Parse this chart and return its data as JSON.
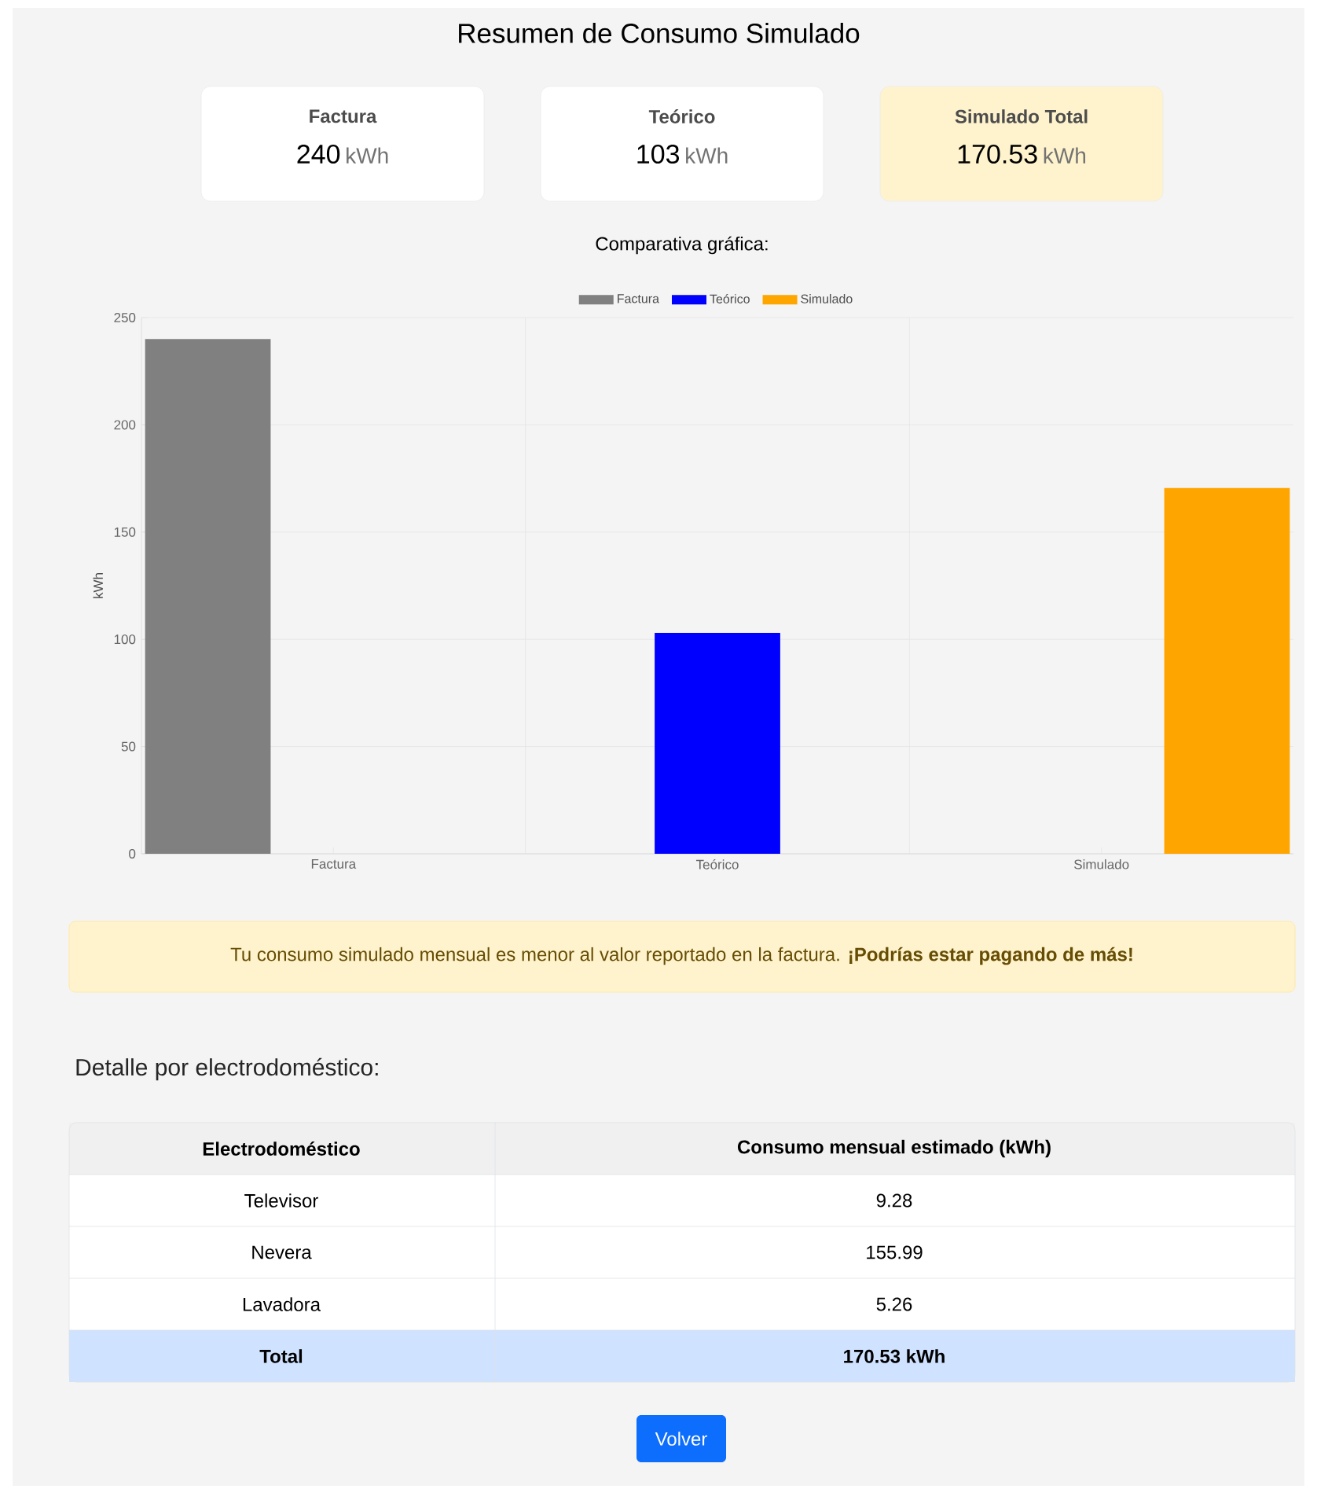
{
  "chart_data": [
    {
      "type": "other",
      "title": "Resumen de Consumo Simulado",
      "categories": [
        "Factura",
        "Teórico",
        "Simulado Total"
      ],
      "values": [
        240,
        103,
        170.53
      ],
      "data_labels": true,
      "colors": [
        "#ffffff",
        "#ffffff",
        "#fff3cd"
      ],
      "annotations": [
        "kWh"
      ]
    },
    {
      "type": "bar",
      "subtitle": "Comparativa gráfica:",
      "categories": [
        "Factura",
        "Teórico",
        "Simulado"
      ],
      "ylabel": "kWh",
      "ylim": [
        0,
        250
      ],
      "yticks": [
        0,
        50,
        100,
        150,
        200,
        250
      ],
      "grid": true,
      "legend": "top",
      "series": [
        {
          "name": "Factura",
          "color": "#808080",
          "values": [
            240,
            null,
            null
          ]
        },
        {
          "name": "Teórico",
          "color": "#0000ff",
          "values": [
            null,
            103,
            null
          ]
        },
        {
          "name": "Simulado",
          "color": "#ffa500",
          "values": [
            null,
            null,
            170.5
          ]
        }
      ],
      "annotations": [
        "Tu consumo simulado mensual es menor al valor reportado en la factura. **¡Podrías estar pagando de más!**"
      ]
    },
    {
      "type": "other",
      "title": "Detalle por electrodoméstico:",
      "categories": [
        "Televisor",
        "Nevera",
        "Lavadora"
      ],
      "values": [
        9.28,
        155.99,
        5.26
      ],
      "data_labels": true,
      "annotations": [
        "Electrodoméstico",
        "Consumo mensual estimado (kWh)",
        "Total",
        "170.53 kWh",
        "Volver"
      ]
    }
  ]
}
